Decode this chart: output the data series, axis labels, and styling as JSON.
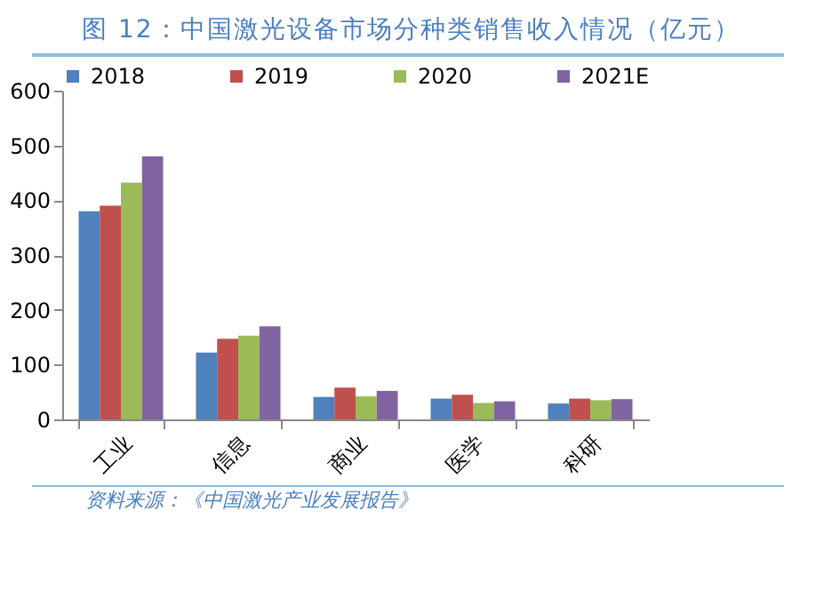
{
  "chart_data": {
    "type": "bar",
    "title": "图 12：中国激光设备市场分种类销售收入情况（亿元）",
    "categories": [
      "工业",
      "信息",
      "商业",
      "医学",
      "科研"
    ],
    "series": [
      {
        "name": "2018",
        "color": "#4f81bd",
        "values": [
          380,
          122,
          41,
          38,
          29
        ]
      },
      {
        "name": "2019",
        "color": "#c0504d",
        "values": [
          390,
          147,
          58,
          45,
          38
        ]
      },
      {
        "name": "2020",
        "color": "#9bbb59",
        "values": [
          432,
          153,
          42,
          30,
          35
        ]
      },
      {
        "name": "2021E",
        "color": "#8064a2",
        "values": [
          480,
          170,
          52,
          33,
          37
        ]
      }
    ],
    "ylim": [
      0,
      600
    ],
    "yticks": [
      0,
      100,
      200,
      300,
      400,
      500,
      600
    ],
    "grid": false,
    "legend": "top",
    "annotations": [
      "资料来源：《中国激光产业发展报告》"
    ]
  }
}
